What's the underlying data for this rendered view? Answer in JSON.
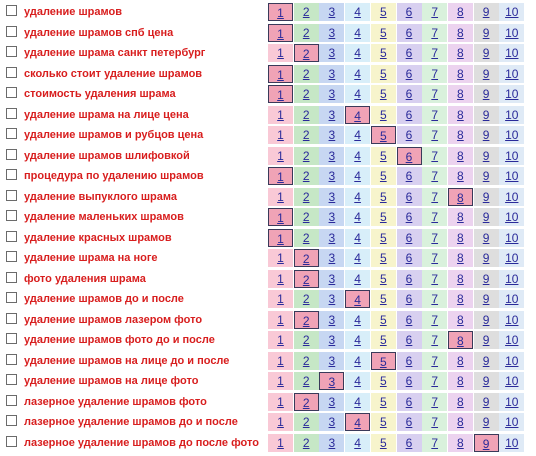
{
  "positions": [
    "1",
    "2",
    "3",
    "4",
    "5",
    "6",
    "7",
    "8",
    "9",
    "10"
  ],
  "colors": {
    "keyword_text": "#d81e1e",
    "link_text": "#2a2a9a",
    "selected_border": "#3a3a5a",
    "column_backgrounds": [
      "#f9c9d6",
      "#c6e7c6",
      "#c7d7f2",
      "#d8eef9",
      "#f7f4cc",
      "#d8d0f0",
      "#d9f1dc",
      "#ecd3ef",
      "#dedede",
      "#dfeaf6"
    ],
    "selected_background": "#f0a3b6"
  },
  "rows": [
    {
      "keyword": "удаление шрамов",
      "selected": 1
    },
    {
      "keyword": "удаление шрамов спб цена",
      "selected": 1
    },
    {
      "keyword": "удаление шрама санкт петербург",
      "selected": 2
    },
    {
      "keyword": "сколько стоит удаление шрамов",
      "selected": 1
    },
    {
      "keyword": "стоимость удаления шрама",
      "selected": 1
    },
    {
      "keyword": "удаление шрама на лице цена",
      "selected": 4
    },
    {
      "keyword": "удаление шрамов и рубцов цена",
      "selected": 5
    },
    {
      "keyword": "удаление шрамов шлифовкой",
      "selected": 6
    },
    {
      "keyword": "процедура по удалению шрамов",
      "selected": 1
    },
    {
      "keyword": "удаление выпуклого шрама",
      "selected": 8
    },
    {
      "keyword": "удаление маленьких шрамов",
      "selected": 1
    },
    {
      "keyword": "удаление красных шрамов",
      "selected": 1
    },
    {
      "keyword": "удаление шрама на ноге",
      "selected": 2
    },
    {
      "keyword": "фото удаления шрама",
      "selected": 2
    },
    {
      "keyword": "удаление шрамов до и после",
      "selected": 4
    },
    {
      "keyword": "удаление шрамов лазером фото",
      "selected": 2
    },
    {
      "keyword": "удаление шрамов фото до и после",
      "selected": 8
    },
    {
      "keyword": "удаление шрамов на лице до и после",
      "selected": 5
    },
    {
      "keyword": "удаление шрамов на лице фото",
      "selected": 3
    },
    {
      "keyword": "лазерное удаление шрамов фото",
      "selected": 2
    },
    {
      "keyword": "лазерное удаление шрамов до и после",
      "selected": 4
    },
    {
      "keyword": "лазерное удаление шрамов до после фото",
      "selected": 9
    }
  ]
}
